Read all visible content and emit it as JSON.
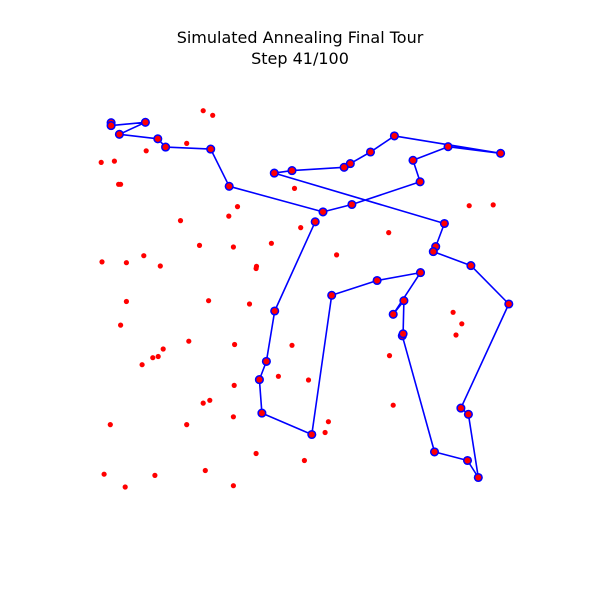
{
  "chart_data": {
    "type": "scatter",
    "title_line1": "Simulated Annealing Final Tour",
    "title_line2": "Step 41/100",
    "axes_visible": false,
    "xlim": [
      0,
      100
    ],
    "ylim": [
      0,
      100
    ],
    "colors": {
      "city_point": "#ff0000",
      "tour_line": "#0000ff",
      "tour_node_edge": "#0000ff",
      "tour_node_fill": "#ff0000"
    },
    "cities": [
      [
        1,
        94.5
      ],
      [
        1,
        93.8
      ],
      [
        9.3,
        94.6
      ],
      [
        3,
        91.7
      ],
      [
        12.3,
        90.6
      ],
      [
        14.2,
        88.6
      ],
      [
        25.1,
        88.1
      ],
      [
        29.6,
        79.1
      ],
      [
        52.3,
        72.9
      ],
      [
        59.3,
        74.7
      ],
      [
        75.8,
        80.2
      ],
      [
        74.1,
        85.4
      ],
      [
        82.6,
        88.7
      ],
      [
        95.3,
        87.1
      ],
      [
        69.6,
        91.3
      ],
      [
        63.8,
        87.4
      ],
      [
        58.9,
        84.6
      ],
      [
        57.4,
        83.7
      ],
      [
        44.8,
        82.9
      ],
      [
        40.5,
        82.3
      ],
      [
        81.7,
        70.1
      ],
      [
        79.6,
        64.5
      ],
      [
        79,
        63.3
      ],
      [
        88.1,
        59.9
      ],
      [
        97.3,
        50.6
      ],
      [
        85.7,
        25.4
      ],
      [
        87.5,
        23.9
      ],
      [
        89.9,
        8.6
      ],
      [
        87.3,
        12.7
      ],
      [
        79.3,
        14.8
      ],
      [
        71.5,
        42.9
      ],
      [
        71.7,
        43.4
      ],
      [
        71.9,
        51.4
      ],
      [
        69.3,
        48.1
      ],
      [
        75.9,
        58.2
      ],
      [
        65.4,
        56.3
      ],
      [
        54.4,
        52.7
      ],
      [
        49.6,
        19
      ],
      [
        37.5,
        24.2
      ],
      [
        36.9,
        32.3
      ],
      [
        38.6,
        36.7
      ],
      [
        40.6,
        48.9
      ],
      [
        50.4,
        70.5
      ],
      [
        23.3,
        97.4
      ],
      [
        25.6,
        96.3
      ],
      [
        19.3,
        89.5
      ],
      [
        9.5,
        87.7
      ],
      [
        -1.4,
        84.9
      ],
      [
        1.8,
        85.2
      ],
      [
        2.8,
        79.6
      ],
      [
        3.3,
        79.6
      ],
      [
        31.6,
        74.2
      ],
      [
        29.5,
        71.9
      ],
      [
        17.8,
        70.8
      ],
      [
        22.4,
        64.8
      ],
      [
        30.6,
        64.4
      ],
      [
        39.8,
        65.3
      ],
      [
        36.2,
        59.7
      ],
      [
        46.9,
        69.1
      ],
      [
        45.4,
        78.6
      ],
      [
        55.6,
        62.5
      ],
      [
        68.2,
        67.9
      ],
      [
        87.7,
        74.4
      ],
      [
        93.5,
        74.6
      ],
      [
        83.8,
        48.6
      ],
      [
        85.9,
        45.8
      ],
      [
        84.5,
        43.1
      ],
      [
        -1.2,
        60.8
      ],
      [
        4.7,
        60.6
      ],
      [
        8.9,
        62.3
      ],
      [
        12.9,
        59.8
      ],
      [
        36.1,
        59.2
      ],
      [
        4.7,
        51.2
      ],
      [
        24.6,
        51.4
      ],
      [
        34.5,
        50.6
      ],
      [
        3.3,
        45.5
      ],
      [
        13.6,
        39.7
      ],
      [
        12.4,
        37.9
      ],
      [
        11.1,
        37.6
      ],
      [
        8.5,
        35.9
      ],
      [
        19.8,
        41.6
      ],
      [
        30.9,
        40.8
      ],
      [
        44.8,
        40.6
      ],
      [
        41.5,
        33.1
      ],
      [
        48.8,
        32.2
      ],
      [
        30.8,
        30.9
      ],
      [
        24.9,
        27.3
      ],
      [
        23.3,
        26.6
      ],
      [
        30.6,
        23.3
      ],
      [
        19.3,
        21.4
      ],
      [
        53.6,
        22.1
      ],
      [
        69.3,
        26.1
      ],
      [
        68.4,
        38.1
      ],
      [
        0.8,
        21.4
      ],
      [
        36.1,
        14.4
      ],
      [
        47.8,
        12.7
      ],
      [
        52.8,
        19.5
      ],
      [
        23.8,
        10.3
      ],
      [
        -0.7,
        9.4
      ],
      [
        11.6,
        9.1
      ],
      [
        4.4,
        6.3
      ],
      [
        30.6,
        6.6
      ]
    ],
    "tour_order": [
      0,
      1,
      2,
      3,
      4,
      5,
      6,
      7,
      8,
      9,
      10,
      11,
      12,
      13,
      14,
      15,
      16,
      17,
      18,
      19,
      20,
      21,
      22,
      23,
      24,
      25,
      26,
      27,
      28,
      29,
      30,
      31,
      32,
      33,
      34,
      35,
      36,
      37,
      38,
      39,
      40,
      41,
      42
    ],
    "tour_open": true
  }
}
